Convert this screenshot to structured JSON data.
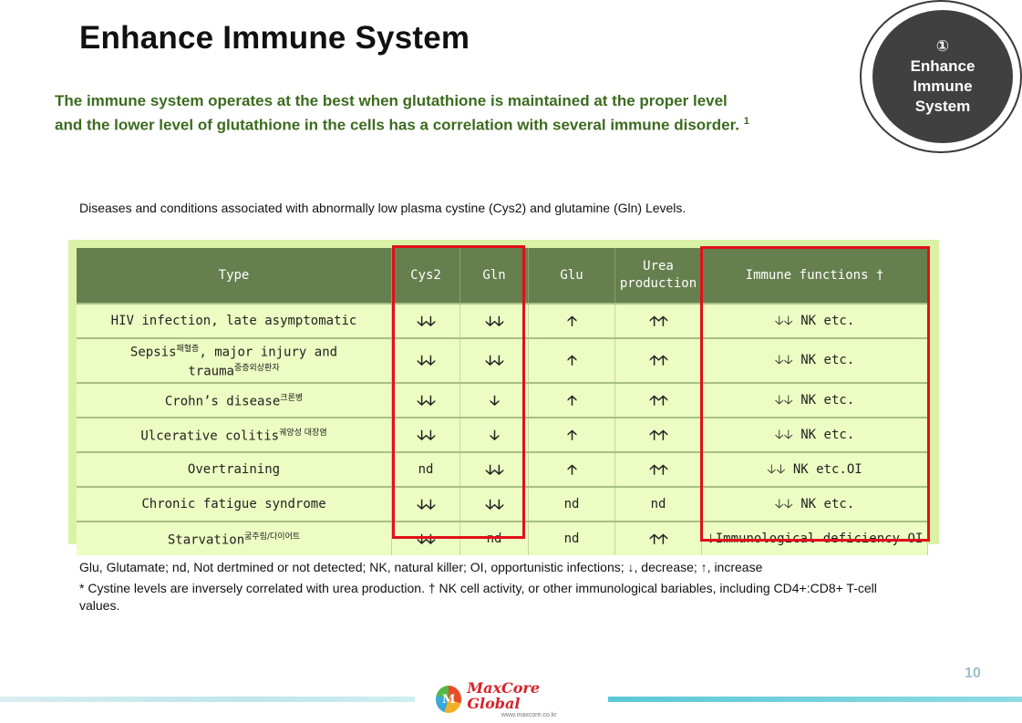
{
  "title": "Enhance Immune System",
  "subtitle": {
    "line1": "The immune system operates at the best when glutathione is maintained at the proper level",
    "line2": "and the lower level of glutathione in the cells has a correlation with several immune disorder.",
    "ref": "1"
  },
  "badge": {
    "number": "①",
    "line1": "Enhance",
    "line2": "Immune",
    "line3": "System"
  },
  "caption": "Diseases and conditions associated with abnormally low plasma cystine (Cys2) and glutamine (Gln) Levels.",
  "table": {
    "headers": {
      "type": "Type",
      "cys2": "Cys2",
      "gln": "Gln",
      "glu": "Glu",
      "urea_line1": "Urea",
      "urea_line2": "production",
      "immune": "Immune functions †"
    },
    "rows": [
      {
        "type": "HIV infection, late asymptomatic",
        "type_note": "",
        "type2": "",
        "type2_note": "",
        "cys2": "🡣🡣",
        "gln": "🡣🡣",
        "glu": "🡡",
        "urea": "🡡🡡",
        "immune": "🡣🡣 NK etc."
      },
      {
        "type": "Sepsis",
        "type_note": "패혈증",
        "type_mid": ", major injury and",
        "type2": "trauma",
        "type2_note": "중증외상환자",
        "cys2": "🡣🡣",
        "gln": "🡣🡣",
        "glu": "🡡",
        "urea": "🡡🡡",
        "immune": "🡣🡣 NK etc."
      },
      {
        "type": "Crohn’s disease",
        "type_note": "크론병",
        "cys2": "🡣🡣",
        "gln": "🡣",
        "glu": "🡡",
        "urea": "🡡🡡",
        "immune": "🡣🡣 NK etc."
      },
      {
        "type": "Ulcerative colitis",
        "type_note": "궤양성 대장염",
        "cys2": "🡣🡣",
        "gln": "🡣",
        "glu": "🡡",
        "urea": "🡡🡡",
        "immune": "🡣🡣 NK etc."
      },
      {
        "type": "Overtraining",
        "type_note": "",
        "cys2": "nd",
        "gln": "🡣🡣",
        "glu": "🡡",
        "urea": "🡡🡡",
        "immune": "🡣🡣 NK etc.OI"
      },
      {
        "type": "Chronic fatigue syndrome",
        "type_note": "",
        "cys2": "🡣🡣",
        "gln": "🡣🡣",
        "glu": "nd",
        "urea": "nd",
        "immune": "🡣🡣 NK etc."
      },
      {
        "type": "Starvation",
        "type_note": "굶주림/다이어트",
        "cys2": "🡣🡣",
        "gln": "nd",
        "glu": "nd",
        "urea": "🡡🡡",
        "immune": "🡣Immunological deficiency OI"
      }
    ]
  },
  "legend": {
    "line1": "Glu, Glutamate; nd, Not dertmined or not detected; NK, natural killer; OI, opportunistic infections; ↓, decrease; ↑, increase",
    "line2": "* Cystine levels are inversely correlated with urea production. † NK cell activity, or other immunological bariables, including CD4+:CD8+ T-cell values."
  },
  "page_number": "10",
  "footer": {
    "logo_mark": "M",
    "logo_name": "MaxCore Global",
    "logo_url": "www.maxcore.co.kr"
  },
  "colors": {
    "subtitle_green": "#3c6b1f",
    "table_header": "#667f4e",
    "table_bg": "#d9f2a6",
    "highlight_red": "#e0101a",
    "badge_dark": "#404040"
  }
}
